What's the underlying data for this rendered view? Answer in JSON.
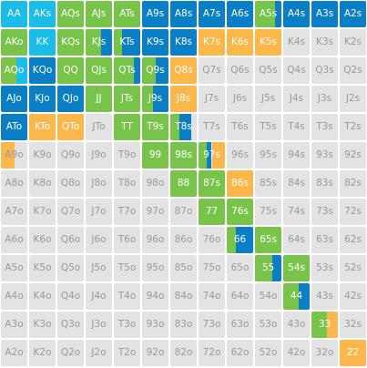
{
  "colors": {
    "empty": "#e3e3e3",
    "light_blue": "#19bde8",
    "dark_blue": "#0a7fc6",
    "green": "#78c44a",
    "orange": "#fbb74a",
    "text_dark": "#9a9a9a",
    "text_light": "#ffffff"
  },
  "rows": [
    [
      "AA",
      "AKs",
      "AQs",
      "AJs",
      "ATs",
      "A9s",
      "A8s",
      "A7s",
      "A6s",
      "A5s",
      "A4s",
      "A3s",
      "A2s"
    ],
    [
      "AKo",
      "KK",
      "KQs",
      "KJs",
      "KTs",
      "K9s",
      "K8s",
      "K7s",
      "K6s",
      "K5s",
      "K4s",
      "K3s",
      "K2s"
    ],
    [
      "AQo",
      "KQo",
      "QQ",
      "QJs",
      "QTs",
      "Q9s",
      "Q8s",
      "Q7s",
      "Q6s",
      "Q5s",
      "Q4s",
      "Q3s",
      "Q2s"
    ],
    [
      "AJo",
      "KJo",
      "QJo",
      "JJ",
      "JTs",
      "J9s",
      "J8s",
      "J7s",
      "J6s",
      "J5s",
      "J4s",
      "J3s",
      "J2s"
    ],
    [
      "ATo",
      "KTo",
      "QTo",
      "JTo",
      "TT",
      "T9s",
      "T8s",
      "T7s",
      "T6s",
      "T5s",
      "T4s",
      "T3s",
      "T2s"
    ],
    [
      "A9o",
      "K9o",
      "Q9o",
      "J9o",
      "T9o",
      "99",
      "98s",
      "97s",
      "96s",
      "95s",
      "94s",
      "93s",
      "92s"
    ],
    [
      "A8o",
      "K8o",
      "Q8o",
      "J8o",
      "T8o",
      "98o",
      "88",
      "87s",
      "86s",
      "85s",
      "84s",
      "83s",
      "82s"
    ],
    [
      "A7o",
      "K7o",
      "Q7o",
      "J7o",
      "T7o",
      "97o",
      "87o",
      "77",
      "76s",
      "75s",
      "74s",
      "73s",
      "72s"
    ],
    [
      "A6o",
      "K6o",
      "Q6o",
      "J6o",
      "T6o",
      "96o",
      "86o",
      "76o",
      "66",
      "65s",
      "64s",
      "63s",
      "62s"
    ],
    [
      "A5o",
      "K5o",
      "Q5o",
      "J5o",
      "T5o",
      "95o",
      "85o",
      "75o",
      "65o",
      "55",
      "54s",
      "53s",
      "52s"
    ],
    [
      "A4o",
      "K4o",
      "Q4o",
      "J4o",
      "T4o",
      "94o",
      "84o",
      "74o",
      "64o",
      "54o",
      "44",
      "43s",
      "42s"
    ],
    [
      "A3o",
      "K3o",
      "Q3o",
      "J3o",
      "T3o",
      "93o",
      "83o",
      "73o",
      "63o",
      "53o",
      "43o",
      "33",
      "32s"
    ],
    [
      "A2o",
      "K2o",
      "Q2o",
      "J2o",
      "T2o",
      "92o",
      "82o",
      "72o",
      "62o",
      "52o",
      "42o",
      "32o",
      "22"
    ]
  ],
  "fills": {
    "AA": [
      [
        "light_blue",
        1
      ]
    ],
    "AKs": [
      [
        "light_blue",
        1
      ]
    ],
    "AQs": [
      [
        "green",
        1
      ]
    ],
    "AJs": [
      [
        "green",
        1
      ]
    ],
    "ATs": [
      [
        "green",
        1
      ]
    ],
    "A9s": [
      [
        "dark_blue",
        1
      ]
    ],
    "A8s": [
      [
        "dark_blue",
        1
      ]
    ],
    "A7s": [
      [
        "dark_blue",
        1
      ]
    ],
    "A6s": [
      [
        "dark_blue",
        1
      ]
    ],
    "A5s": [
      [
        "green",
        0.75
      ],
      [
        "dark_blue",
        0.25
      ]
    ],
    "A4s": [
      [
        "dark_blue",
        1
      ]
    ],
    "A3s": [
      [
        "dark_blue",
        1
      ]
    ],
    "A2s": [
      [
        "dark_blue",
        1
      ]
    ],
    "AKo": [
      [
        "green",
        1
      ]
    ],
    "KK": [
      [
        "light_blue",
        1
      ]
    ],
    "KQs": [
      [
        "green",
        1
      ]
    ],
    "KJs": [
      [
        "green",
        0.6
      ],
      [
        "dark_blue",
        0.4
      ]
    ],
    "KTs": [
      [
        "green",
        0.3
      ],
      [
        "dark_blue",
        0.7
      ]
    ],
    "K9s": [
      [
        "dark_blue",
        1
      ]
    ],
    "K8s": [
      [
        "dark_blue",
        1
      ]
    ],
    "K7s": [
      [
        "orange",
        1
      ]
    ],
    "K6s": [
      [
        "orange",
        1
      ]
    ],
    "K5s": [
      [
        "orange",
        1
      ]
    ],
    "AQo": [
      [
        "green",
        0.6
      ],
      [
        "light_blue",
        0.4
      ]
    ],
    "KQo": [
      [
        "dark_blue",
        1
      ]
    ],
    "QQ": [
      [
        "green",
        1
      ]
    ],
    "QJs": [
      [
        "green",
        1
      ]
    ],
    "QTs": [
      [
        "green",
        0.75
      ],
      [
        "dark_blue",
        0.25
      ]
    ],
    "Q9s": [
      [
        "green",
        0.5
      ],
      [
        "dark_blue",
        0.5
      ]
    ],
    "Q8s": [
      [
        "orange",
        1
      ]
    ],
    "AJo": [
      [
        "dark_blue",
        1
      ]
    ],
    "KJo": [
      [
        "dark_blue",
        1
      ]
    ],
    "QJo": [
      [
        "dark_blue",
        1
      ]
    ],
    "JJ": [
      [
        "green",
        1
      ]
    ],
    "JTs": [
      [
        "green",
        1
      ]
    ],
    "J9s": [
      [
        "green",
        0.4
      ],
      [
        "dark_blue",
        0.6
      ]
    ],
    "J8s": [
      [
        "orange",
        1
      ]
    ],
    "ATo": [
      [
        "dark_blue",
        1
      ]
    ],
    "KTo": [
      [
        "orange",
        1
      ]
    ],
    "QTo": [
      [
        "orange",
        1
      ]
    ],
    "TT": [
      [
        "green",
        1
      ]
    ],
    "T9s": [
      [
        "green",
        1
      ]
    ],
    "T8s": [
      [
        "green",
        0.35
      ],
      [
        "dark_blue",
        0.45
      ],
      [
        "empty",
        0.2
      ]
    ],
    "A9o": [
      [
        "orange",
        0.5
      ],
      [
        "empty",
        0.5
      ]
    ],
    "99": [
      [
        "green",
        1
      ]
    ],
    "98s": [
      [
        "green",
        1
      ]
    ],
    "97s": [
      [
        "green",
        0.3
      ],
      [
        "dark_blue",
        0.2
      ],
      [
        "orange",
        0.5
      ]
    ],
    "88": [
      [
        "green",
        1
      ]
    ],
    "87s": [
      [
        "green",
        1
      ]
    ],
    "86s": [
      [
        "orange",
        1
      ]
    ],
    "77": [
      [
        "green",
        1
      ]
    ],
    "76s": [
      [
        "green",
        1
      ]
    ],
    "66": [
      [
        "green",
        0.35
      ],
      [
        "dark_blue",
        0.65
      ]
    ],
    "65s": [
      [
        "green",
        1
      ]
    ],
    "55": [
      [
        "green",
        0.65
      ],
      [
        "dark_blue",
        0.35
      ]
    ],
    "54s": [
      [
        "green",
        1
      ]
    ],
    "44": [
      [
        "green",
        0.6
      ],
      [
        "dark_blue",
        0.4
      ]
    ],
    "33": [
      [
        "green",
        0.6
      ],
      [
        "orange",
        0.4
      ]
    ],
    "22": [
      [
        "orange",
        1
      ]
    ]
  },
  "light_text": [
    "AA",
    "AKs",
    "AQs",
    "AJs",
    "ATs",
    "A9s",
    "A8s",
    "A7s",
    "A6s",
    "A5s",
    "A4s",
    "A3s",
    "A2s",
    "AKo",
    "KK",
    "KQs",
    "KJs",
    "KTs",
    "K9s",
    "K8s",
    "K7s",
    "K6s",
    "K5s",
    "AQo",
    "KQo",
    "QQ",
    "QJs",
    "QTs",
    "Q9s",
    "Q8s",
    "AJo",
    "KJo",
    "QJo",
    "JJ",
    "JTs",
    "J9s",
    "J8s",
    "ATo",
    "KTo",
    "QTo",
    "TT",
    "T9s",
    "T8s",
    "99",
    "98s",
    "97s",
    "88",
    "87s",
    "86s",
    "77",
    "76s",
    "66",
    "65s",
    "55",
    "54s",
    "44",
    "33",
    "22"
  ]
}
